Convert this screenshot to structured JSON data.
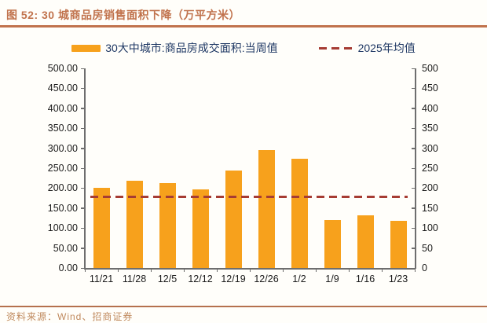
{
  "title": "图 52: 30 城商品房销售面积下降（万平方米）",
  "footer": {
    "source_label": "资料来源：Wind、招商证券"
  },
  "legend": [
    {
      "label": "30大中城市:商品房成交面积:当周值",
      "type": "bar"
    },
    {
      "label": "2025年均值",
      "type": "dash"
    }
  ],
  "colors": {
    "bar": "#f7a11c",
    "average_line": "#a63c33",
    "title": "#c1734d",
    "rule": "#b5714e",
    "legend_text": "#1f3864",
    "axis": "#6e6e6e",
    "tick_text": "#1a1a1a"
  },
  "chart_data": {
    "type": "bar",
    "title": "30 城商品房销售面积下降（万平方米）",
    "categories": [
      "11/21",
      "11/28",
      "12/5",
      "12/12",
      "12/19",
      "12/26",
      "1/2",
      "1/9",
      "1/16",
      "1/23"
    ],
    "series": [
      {
        "name": "30大中城市:商品房成交面积:当周值",
        "values": [
          201,
          218,
          212,
          196,
          245,
          295,
          274,
          121,
          131,
          118
        ]
      }
    ],
    "average_line": {
      "name": "2025年均值",
      "value": 179
    },
    "xlabel": "",
    "ylabel": "",
    "ylim": [
      0,
      500
    ],
    "y_tick_step": 50,
    "y_ticks_left": [
      "0.00",
      "50.00",
      "100.00",
      "150.00",
      "200.00",
      "250.00",
      "300.00",
      "350.00",
      "400.00",
      "450.00",
      "500.00"
    ],
    "y_ticks_right": [
      "0",
      "50",
      "100",
      "150",
      "200",
      "250",
      "300",
      "350",
      "400",
      "450",
      "500"
    ],
    "grid": false,
    "legend_position": "top"
  }
}
